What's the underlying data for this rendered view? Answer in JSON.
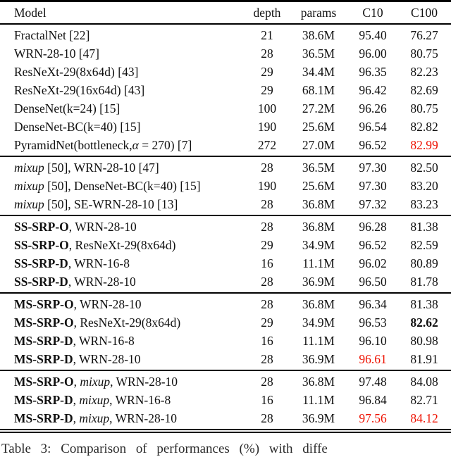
{
  "colors": {
    "highlight": "#ee1100",
    "text": "#111111",
    "rule": "#000000"
  },
  "table": {
    "columns": [
      "Model",
      "depth",
      "params",
      "C10",
      "C100"
    ],
    "sections": [
      {
        "rows": [
          {
            "model": [
              {
                "t": "FractalNet [22]"
              }
            ],
            "depth": "21",
            "params": "38.6M",
            "c10": {
              "t": "95.40"
            },
            "c100": {
              "t": "76.27"
            }
          },
          {
            "model": [
              {
                "t": "WRN-28-10 [47]"
              }
            ],
            "depth": "28",
            "params": "36.5M",
            "c10": {
              "t": "96.00"
            },
            "c100": {
              "t": "80.75"
            }
          },
          {
            "model": [
              {
                "t": "ResNeXt-29(8x64d) [43]"
              }
            ],
            "depth": "29",
            "params": "34.4M",
            "c10": {
              "t": "96.35"
            },
            "c100": {
              "t": "82.23"
            }
          },
          {
            "model": [
              {
                "t": "ResNeXt-29(16x64d) [43]"
              }
            ],
            "depth": "29",
            "params": "68.1M",
            "c10": {
              "t": "96.42"
            },
            "c100": {
              "t": "82.69"
            }
          },
          {
            "model": [
              {
                "t": "DenseNet(k=24) [15]"
              }
            ],
            "depth": "100",
            "params": "27.2M",
            "c10": {
              "t": "96.26"
            },
            "c100": {
              "t": "80.75"
            }
          },
          {
            "model": [
              {
                "t": "DenseNet-BC(k=40) [15]"
              }
            ],
            "depth": "190",
            "params": "25.6M",
            "c10": {
              "t": "96.54"
            },
            "c100": {
              "t": "82.82"
            }
          },
          {
            "model": [
              {
                "t": "PyramidNet(bottleneck,"
              },
              {
                "t": "α",
                "i": true
              },
              {
                "t": " = 270) [7]"
              }
            ],
            "depth": "272",
            "params": "27.0M",
            "c10": {
              "t": "96.52"
            },
            "c100": {
              "t": "82.99",
              "red": true
            }
          }
        ]
      },
      {
        "rows": [
          {
            "model": [
              {
                "t": "mixup",
                "i": true
              },
              {
                "t": " [50], WRN-28-10 [47]"
              }
            ],
            "depth": "28",
            "params": "36.5M",
            "c10": {
              "t": "97.30"
            },
            "c100": {
              "t": "82.50"
            }
          },
          {
            "model": [
              {
                "t": "mixup",
                "i": true
              },
              {
                "t": " [50], DenseNet-BC(k=40) [15]"
              }
            ],
            "depth": "190",
            "params": "25.6M",
            "c10": {
              "t": "97.30"
            },
            "c100": {
              "t": "83.20"
            }
          },
          {
            "model": [
              {
                "t": "mixup",
                "i": true
              },
              {
                "t": " [50], SE-WRN-28-10 [13]"
              }
            ],
            "depth": "28",
            "params": "36.8M",
            "c10": {
              "t": "97.32"
            },
            "c100": {
              "t": "83.23"
            }
          }
        ]
      },
      {
        "rows": [
          {
            "model": [
              {
                "t": "SS-SRP-O",
                "b": true
              },
              {
                "t": ", WRN-28-10"
              }
            ],
            "depth": "28",
            "params": "36.8M",
            "c10": {
              "t": "96.28"
            },
            "c100": {
              "t": "81.38"
            }
          },
          {
            "model": [
              {
                "t": "SS-SRP-O",
                "b": true
              },
              {
                "t": ", ResNeXt-29(8x64d)"
              }
            ],
            "depth": "29",
            "params": "34.9M",
            "c10": {
              "t": "96.52"
            },
            "c100": {
              "t": "82.59"
            }
          },
          {
            "model": [
              {
                "t": "SS-SRP-D",
                "b": true
              },
              {
                "t": ", WRN-16-8"
              }
            ],
            "depth": "16",
            "params": "11.1M",
            "c10": {
              "t": "96.02"
            },
            "c100": {
              "t": "80.89"
            }
          },
          {
            "model": [
              {
                "t": "SS-SRP-D",
                "b": true
              },
              {
                "t": ", WRN-28-10"
              }
            ],
            "depth": "28",
            "params": "36.9M",
            "c10": {
              "t": "96.50"
            },
            "c100": {
              "t": "81.78"
            }
          }
        ]
      },
      {
        "rows": [
          {
            "model": [
              {
                "t": "MS-SRP-O",
                "b": true
              },
              {
                "t": ", WRN-28-10"
              }
            ],
            "depth": "28",
            "params": "36.8M",
            "c10": {
              "t": "96.34"
            },
            "c100": {
              "t": "81.38"
            }
          },
          {
            "model": [
              {
                "t": "MS-SRP-O",
                "b": true
              },
              {
                "t": ", ResNeXt-29(8x64d)"
              }
            ],
            "depth": "29",
            "params": "34.9M",
            "c10": {
              "t": "96.53"
            },
            "c100": {
              "t": "82.62",
              "b": true
            }
          },
          {
            "model": [
              {
                "t": "MS-SRP-D",
                "b": true
              },
              {
                "t": ", WRN-16-8"
              }
            ],
            "depth": "16",
            "params": "11.1M",
            "c10": {
              "t": "96.10"
            },
            "c100": {
              "t": "80.98"
            }
          },
          {
            "model": [
              {
                "t": "MS-SRP-D",
                "b": true
              },
              {
                "t": ", WRN-28-10"
              }
            ],
            "depth": "28",
            "params": "36.9M",
            "c10": {
              "t": "96.61",
              "red": true
            },
            "c100": {
              "t": "81.91"
            }
          }
        ]
      },
      {
        "rows": [
          {
            "model": [
              {
                "t": "MS-SRP-O",
                "b": true
              },
              {
                "t": ", "
              },
              {
                "t": "mixup",
                "i": true
              },
              {
                "t": ", WRN-28-10"
              }
            ],
            "depth": "28",
            "params": "36.8M",
            "c10": {
              "t": "97.48"
            },
            "c100": {
              "t": "84.08"
            }
          },
          {
            "model": [
              {
                "t": "MS-SRP-D",
                "b": true
              },
              {
                "t": ", "
              },
              {
                "t": "mixup",
                "i": true
              },
              {
                "t": ", WRN-16-8"
              }
            ],
            "depth": "16",
            "params": "11.1M",
            "c10": {
              "t": "96.84"
            },
            "c100": {
              "t": "82.71"
            }
          },
          {
            "model": [
              {
                "t": "MS-SRP-D",
                "b": true
              },
              {
                "t": ", "
              },
              {
                "t": "mixup",
                "i": true
              },
              {
                "t": ", WRN-28-10"
              }
            ],
            "depth": "28",
            "params": "36.9M",
            "c10": {
              "t": "97.56",
              "red": true
            },
            "c100": {
              "t": "84.12",
              "red": true
            }
          }
        ]
      }
    ]
  },
  "caption": {
    "text": "Table 3: Comparison of performances (%) with diffe"
  }
}
